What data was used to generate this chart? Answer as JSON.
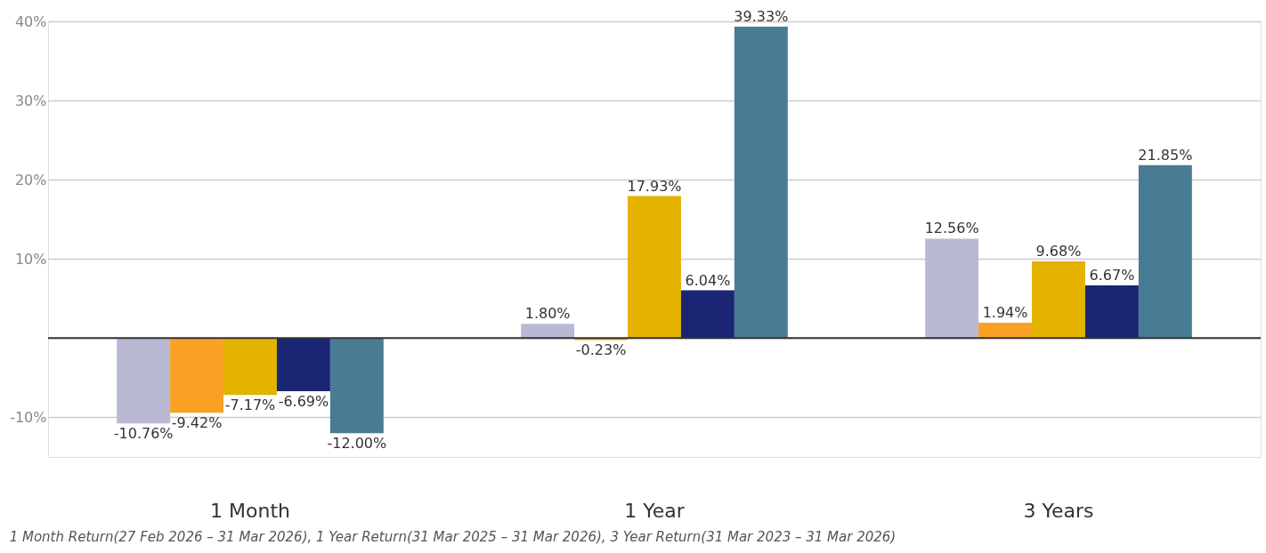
{
  "chart_data": {
    "type": "bar",
    "categories": [
      "1 Month",
      "1 Year",
      "3 Years"
    ],
    "series": [
      {
        "color": "#b9b9d3",
        "values": [
          -10.76,
          1.8,
          12.56
        ],
        "value_labels": [
          "-10.76%",
          "1.80%",
          "12.56%"
        ]
      },
      {
        "color": "#f9a124",
        "values": [
          -9.42,
          -0.23,
          1.94
        ],
        "value_labels": [
          "-9.42%",
          "-0.23%",
          "1.94%"
        ]
      },
      {
        "color": "#e3b300",
        "values": [
          -7.17,
          17.93,
          9.68
        ],
        "value_labels": [
          "-7.17%",
          "17.93%",
          "9.68%"
        ]
      },
      {
        "color": "#1a2674",
        "values": [
          -6.69,
          6.04,
          6.67
        ],
        "value_labels": [
          "-6.69%",
          "6.04%",
          "6.67%"
        ]
      },
      {
        "color": "#4a7b94",
        "values": [
          -12.0,
          39.33,
          21.85
        ],
        "value_labels": [
          "-12.00%",
          "39.33%",
          "21.85%"
        ]
      }
    ],
    "ylim": [
      -15,
      40
    ],
    "yticks": [
      {
        "value": -10,
        "label": "-10%"
      },
      {
        "value": 0,
        "label": null
      },
      {
        "value": 10,
        "label": "10%"
      },
      {
        "value": 20,
        "label": "20%"
      },
      {
        "value": 30,
        "label": "30%"
      },
      {
        "value": 40,
        "label": "40%"
      }
    ],
    "grid": "y",
    "legend": false,
    "ref_lines": [
      {
        "axis": "y",
        "value": 0,
        "color": "#333333"
      }
    ],
    "annotations": [
      "1 Month Return(27 Feb 2026 – 31 Mar 2026), 1 Year Return(31 Mar 2025 – 31 Mar 2026), 3 Year Return(31 Mar 2023 – 31 Mar 2026)"
    ]
  }
}
